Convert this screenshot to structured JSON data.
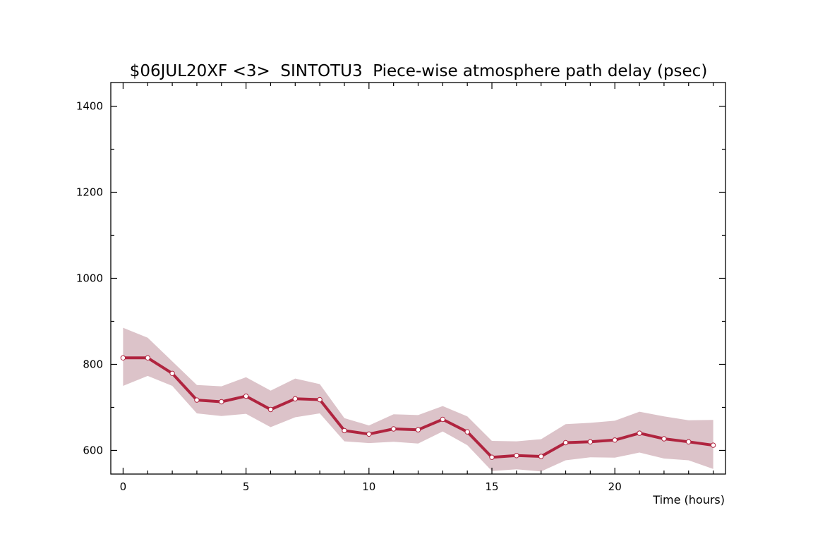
{
  "chart_data": {
    "type": "line",
    "title": "$06JUL20XF <3>  SINTOTU3  Piece-wise atmosphere path delay (psec)",
    "xlabel": "Time (hours)",
    "ylabel": "",
    "xlim": [
      -0.5,
      24.5
    ],
    "ylim": [
      545,
      1455
    ],
    "x_ticks": [
      0,
      5,
      10,
      15,
      20
    ],
    "y_ticks": [
      600,
      800,
      1000,
      1200,
      1400
    ],
    "grid": false,
    "colors": {
      "line": "#b0243f",
      "band": "#dcc3c9",
      "marker_fill": "#ffffff"
    },
    "series": [
      {
        "x": [
          0,
          1,
          2,
          3,
          4,
          5,
          6,
          7,
          8,
          9,
          10,
          11,
          12,
          13,
          14,
          15,
          16,
          17,
          18,
          19,
          20,
          21,
          22,
          23,
          24
        ],
        "values": [
          815,
          815,
          779,
          717,
          713,
          726,
          695,
          720,
          718,
          646,
          638,
          650,
          648,
          672,
          643,
          584,
          588,
          586,
          618,
          620,
          624,
          640,
          627,
          620,
          612
        ],
        "upper": [
          885,
          862,
          807,
          752,
          749,
          770,
          739,
          767,
          754,
          675,
          658,
          684,
          682,
          703,
          679,
          622,
          621,
          626,
          661,
          664,
          669,
          690,
          679,
          670,
          671
        ],
        "lower": [
          750,
          773,
          750,
          686,
          680,
          685,
          654,
          677,
          686,
          621,
          617,
          620,
          616,
          644,
          612,
          552,
          556,
          551,
          577,
          584,
          583,
          595,
          581,
          577,
          557
        ]
      }
    ]
  }
}
